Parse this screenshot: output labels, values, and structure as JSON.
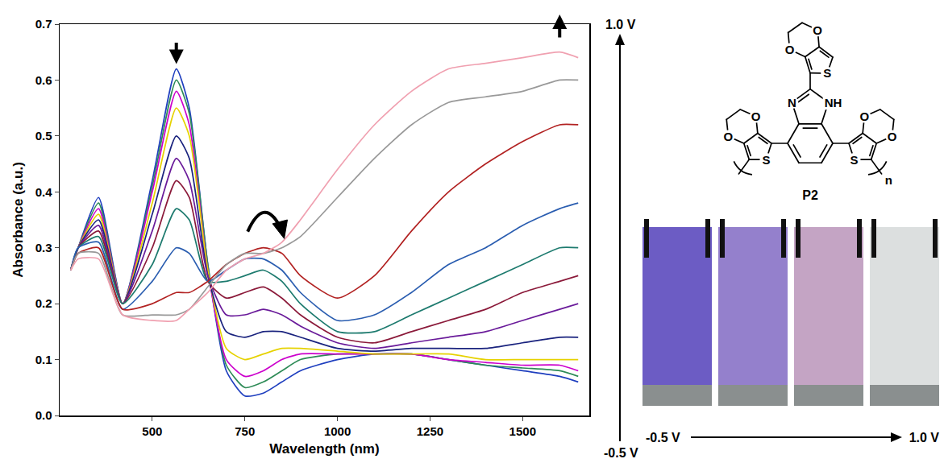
{
  "chart_data": {
    "type": "line",
    "xlabel": "Wavelength (nm)",
    "ylabel": "Absorbance (a.u.)",
    "xlim": [
      250,
      1680
    ],
    "ylim": [
      0,
      0.7
    ],
    "xticks": [
      500,
      750,
      1000,
      1250,
      1500
    ],
    "yticks": [
      {
        "value": 0,
        "label": "0.0"
      },
      0.1,
      0.2,
      0.3,
      0.4,
      0.5,
      0.6,
      0.7
    ],
    "grid": false,
    "x": [
      280,
      300,
      355,
      420,
      500,
      565,
      600,
      650,
      700,
      750,
      800,
      850,
      900,
      1000,
      1100,
      1200,
      1300,
      1400,
      1500,
      1600,
      1650
    ],
    "series": [
      {
        "color": "#1f3fbf",
        "values": [
          0.26,
          0.3,
          0.39,
          0.2,
          0.42,
          0.62,
          0.55,
          0.27,
          0.08,
          0.035,
          0.04,
          0.06,
          0.08,
          0.1,
          0.11,
          0.11,
          0.1,
          0.09,
          0.08,
          0.07,
          0.06
        ]
      },
      {
        "color": "#2e8b57",
        "values": [
          0.26,
          0.3,
          0.38,
          0.2,
          0.41,
          0.6,
          0.54,
          0.27,
          0.09,
          0.05,
          0.06,
          0.08,
          0.1,
          0.11,
          0.11,
          0.11,
          0.1,
          0.09,
          0.085,
          0.08,
          0.07
        ]
      },
      {
        "color": "#cc00cc",
        "values": [
          0.26,
          0.3,
          0.37,
          0.2,
          0.4,
          0.58,
          0.52,
          0.26,
          0.1,
          0.07,
          0.08,
          0.1,
          0.11,
          0.11,
          0.11,
          0.11,
          0.1,
          0.095,
          0.09,
          0.09,
          0.08
        ]
      },
      {
        "color": "#e6d200",
        "values": [
          0.26,
          0.3,
          0.36,
          0.2,
          0.38,
          0.55,
          0.5,
          0.26,
          0.12,
          0.1,
          0.11,
          0.12,
          0.12,
          0.115,
          0.11,
          0.11,
          0.11,
          0.1,
          0.1,
          0.1,
          0.1
        ]
      },
      {
        "color": "#1a237e",
        "values": [
          0.26,
          0.3,
          0.35,
          0.2,
          0.36,
          0.5,
          0.46,
          0.25,
          0.15,
          0.14,
          0.15,
          0.15,
          0.14,
          0.12,
          0.115,
          0.12,
          0.12,
          0.12,
          0.13,
          0.14,
          0.14
        ]
      },
      {
        "color": "#6a1b9a",
        "values": [
          0.26,
          0.3,
          0.34,
          0.2,
          0.33,
          0.46,
          0.42,
          0.25,
          0.18,
          0.18,
          0.19,
          0.18,
          0.16,
          0.13,
          0.12,
          0.13,
          0.14,
          0.15,
          0.17,
          0.19,
          0.2
        ]
      },
      {
        "color": "#8b1a3a",
        "values": [
          0.26,
          0.3,
          0.33,
          0.2,
          0.3,
          0.42,
          0.39,
          0.24,
          0.21,
          0.22,
          0.23,
          0.21,
          0.18,
          0.14,
          0.13,
          0.15,
          0.17,
          0.19,
          0.22,
          0.24,
          0.25
        ]
      },
      {
        "color": "#1e7b6f",
        "values": [
          0.26,
          0.3,
          0.32,
          0.2,
          0.27,
          0.37,
          0.35,
          0.24,
          0.24,
          0.25,
          0.26,
          0.24,
          0.2,
          0.15,
          0.15,
          0.18,
          0.21,
          0.24,
          0.27,
          0.3,
          0.3
        ]
      },
      {
        "color": "#2a5db0",
        "values": [
          0.26,
          0.3,
          0.31,
          0.19,
          0.24,
          0.3,
          0.29,
          0.24,
          0.26,
          0.28,
          0.28,
          0.26,
          0.22,
          0.17,
          0.18,
          0.22,
          0.27,
          0.3,
          0.34,
          0.37,
          0.38
        ]
      },
      {
        "color": "#b22222",
        "values": [
          0.26,
          0.29,
          0.3,
          0.19,
          0.2,
          0.22,
          0.22,
          0.24,
          0.27,
          0.29,
          0.3,
          0.29,
          0.25,
          0.21,
          0.25,
          0.33,
          0.4,
          0.45,
          0.49,
          0.52,
          0.52
        ]
      },
      {
        "color": "#999999",
        "values": [
          0.26,
          0.29,
          0.29,
          0.18,
          0.18,
          0.18,
          0.19,
          0.23,
          0.27,
          0.29,
          0.29,
          0.3,
          0.32,
          0.39,
          0.46,
          0.52,
          0.56,
          0.57,
          0.58,
          0.6,
          0.6
        ]
      },
      {
        "color": "#f0a0b0",
        "values": [
          0.26,
          0.28,
          0.28,
          0.18,
          0.17,
          0.17,
          0.19,
          0.22,
          0.26,
          0.28,
          0.29,
          0.31,
          0.35,
          0.44,
          0.52,
          0.58,
          0.62,
          0.63,
          0.64,
          0.65,
          0.64
        ]
      }
    ]
  },
  "potential_axis": {
    "top": "1.0 V",
    "bottom": "-0.5 V"
  },
  "structure": {
    "name": "P2",
    "oxygen": "O",
    "sulfur": "S",
    "nitrogen": "N",
    "imine": "NH",
    "repeat": "n"
  },
  "photos": {
    "colors": [
      "#6c5cc4",
      "#9480cc",
      "#c4a4c4",
      "#dcdfdf"
    ],
    "start": "-0.5 V",
    "end": "1.0 V"
  }
}
